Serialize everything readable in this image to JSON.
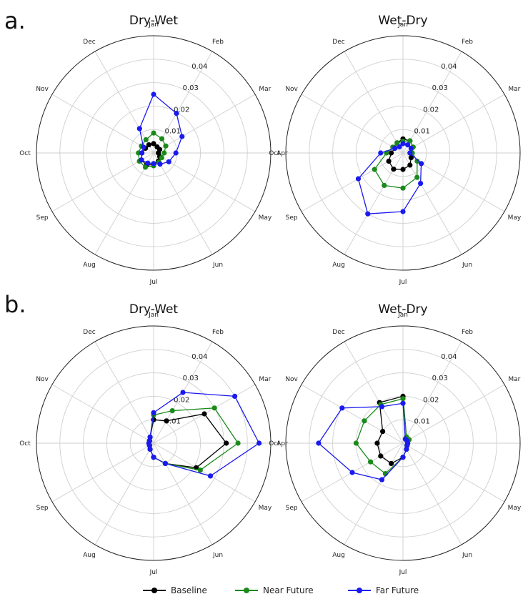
{
  "panels": [
    {
      "label": "a."
    },
    {
      "label": "b."
    }
  ],
  "legend": [
    {
      "name": "Baseline",
      "color": "#000000"
    },
    {
      "name": "Near Future",
      "color": "#1a8a1a"
    },
    {
      "name": "Far Future",
      "color": "#1a1aee"
    }
  ],
  "chart_data": [
    {
      "type": "polar-line",
      "panel": "a.",
      "title": "Dry-Wet",
      "categories": [
        "Jan",
        "Feb",
        "Mar",
        "Apr",
        "May",
        "Jun",
        "Jul",
        "Aug",
        "Sep",
        "Oct",
        "Nov",
        "Dec"
      ],
      "rticks": [
        "0.01",
        "0.02",
        "0.03",
        "0.04"
      ],
      "rlim": [
        0,
        0.05
      ],
      "grid": true,
      "series": [
        {
          "name": "Baseline",
          "values": [
            0.004,
            0.003,
            0.003,
            0.002,
            0.003,
            0.004,
            0.005,
            0.006,
            0.006,
            0.005,
            0.004,
            0.004
          ]
        },
        {
          "name": "Near Future",
          "values": [
            0.0085,
            0.007,
            0.006,
            0.0045,
            0.004,
            0.0045,
            0.0055,
            0.007,
            0.007,
            0.0065,
            0.006,
            0.0065
          ]
        },
        {
          "name": "Far Future",
          "values": [
            0.025,
            0.0195,
            0.014,
            0.0095,
            0.0075,
            0.0055,
            0.0045,
            0.005,
            0.006,
            0.005,
            0.005,
            0.012
          ]
        }
      ]
    },
    {
      "type": "polar-line",
      "panel": "a.",
      "title": "Wet-Dry",
      "categories": [
        "Jan",
        "Feb",
        "Mar",
        "Apr",
        "May",
        "Jun",
        "Jul",
        "Aug",
        "Sep",
        "Oct",
        "Nov",
        "Dec"
      ],
      "rticks": [
        "0.01",
        "0.02",
        "0.03",
        "0.04"
      ],
      "rlim": [
        0,
        0.05
      ],
      "grid": true,
      "series": [
        {
          "name": "Baseline",
          "values": [
            0.006,
            0.006,
            0.005,
            0.003,
            0.004,
            0.006,
            0.007,
            0.008,
            0.007,
            0.005,
            0.004,
            0.005
          ]
        },
        {
          "name": "Near Future",
          "values": [
            0.005,
            0.006,
            0.005,
            0.004,
            0.007,
            0.012,
            0.015,
            0.016,
            0.014,
            0.007,
            0.005,
            0.005
          ]
        },
        {
          "name": "Far Future",
          "values": [
            0.004,
            0.004,
            0.004,
            0.003,
            0.009,
            0.015,
            0.025,
            0.03,
            0.022,
            0.0095,
            0.004,
            0.003
          ]
        }
      ]
    },
    {
      "type": "polar-line",
      "panel": "b.",
      "title": "Dry-Wet",
      "categories": [
        "Jan",
        "Feb",
        "Mar",
        "Apr",
        "May",
        "Jun",
        "Jul",
        "Aug",
        "Sep",
        "Oct",
        "Nov",
        "Dec"
      ],
      "rticks": [
        "0.01",
        "0.02",
        "0.03",
        "0.04"
      ],
      "rlim": [
        0,
        0.05
      ],
      "grid": true,
      "series": [
        {
          "name": "Baseline",
          "values": [
            0.01,
            0.011,
            0.025,
            0.031,
            0.021,
            0.01,
            0.006,
            0.003,
            0.002,
            0.002,
            0.002,
            0.003
          ]
        },
        {
          "name": "Near Future",
          "values": [
            0.012,
            0.016,
            0.03,
            0.036,
            0.023,
            0.01,
            0.006,
            0.003,
            0.002,
            0.002,
            0.002,
            0.003
          ]
        },
        {
          "name": "Far Future",
          "values": [
            0.013,
            0.025,
            0.04,
            0.045,
            0.028,
            0.01,
            0.006,
            0.003,
            0.002,
            0.002,
            0.002,
            0.003
          ]
        }
      ]
    },
    {
      "type": "polar-line",
      "panel": "b.",
      "title": "Wet-Dry",
      "categories": [
        "Jan",
        "Feb",
        "Mar",
        "Apr",
        "May",
        "Jun",
        "Jul",
        "Aug",
        "Sep",
        "Oct",
        "Nov",
        "Dec"
      ],
      "rticks": [
        "0.01",
        "0.02",
        "0.03",
        "0.04"
      ],
      "rlim": [
        0,
        0.05
      ],
      "grid": true,
      "series": [
        {
          "name": "Baseline",
          "values": [
            0.02,
            0.003,
            0.003,
            0.002,
            0.002,
            0.003,
            0.006,
            0.01,
            0.011,
            0.011,
            0.01,
            0.02
          ]
        },
        {
          "name": "Near Future",
          "values": [
            0.019,
            0.003,
            0.003,
            0.002,
            0.002,
            0.003,
            0.006,
            0.015,
            0.016,
            0.02,
            0.019,
            0.019
          ]
        },
        {
          "name": "Far Future",
          "values": [
            0.017,
            0.002,
            0.002,
            0.002,
            0.002,
            0.003,
            0.006,
            0.018,
            0.025,
            0.036,
            0.03,
            0.018
          ]
        }
      ]
    }
  ]
}
